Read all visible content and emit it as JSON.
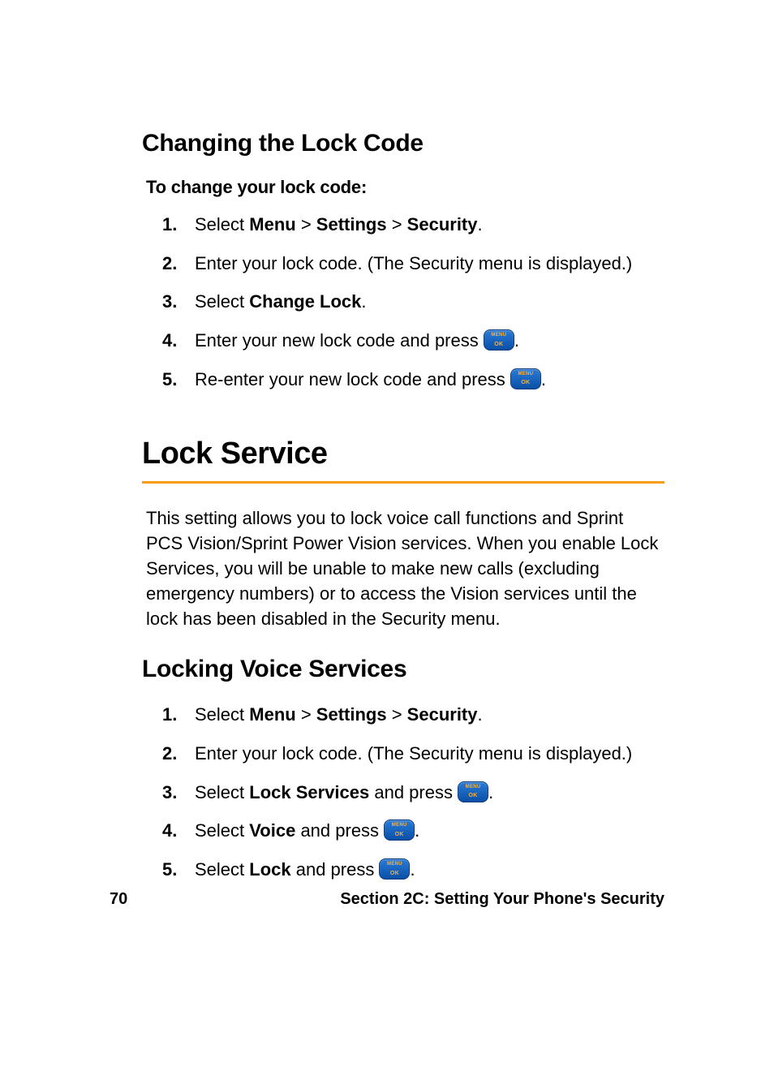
{
  "colors": {
    "text": "#000000",
    "background": "#ffffff",
    "accent_rule": "#f59c1a",
    "button_gradient_top": "#2a7bd6",
    "button_gradient_bottom": "#0a4fa8",
    "button_border": "#0a3a7a",
    "button_text": "#ffb030"
  },
  "typography": {
    "h1_fontsize": 38,
    "h2_fontsize": 30,
    "intro_fontsize": 22,
    "body_fontsize": 22,
    "footer_fontsize": 20,
    "font_family": "Myriad Pro, Segoe UI, Helvetica Neue, Arial, sans-serif"
  },
  "button_icon": {
    "label_top": "MENU",
    "label_bottom": "OK"
  },
  "section_changing": {
    "heading": "Changing the Lock Code",
    "intro": "To change your lock code:",
    "steps": [
      {
        "num": "1.",
        "pre": "Select ",
        "menu": "Menu",
        "gt1": " > ",
        "settings": "Settings",
        "gt2": " > ",
        "security": "Security",
        "post": "."
      },
      {
        "num": "2.",
        "text": "Enter your lock code. (The Security menu is displayed.)"
      },
      {
        "num": "3.",
        "pre": "Select ",
        "bold": "Change Lock",
        "post": "."
      },
      {
        "num": "4.",
        "pre": "Enter your new lock code and press ",
        "post": "."
      },
      {
        "num": "5.",
        "pre": "Re-enter your new lock code and press ",
        "post": "."
      }
    ]
  },
  "section_lockservice": {
    "heading": "Lock Service",
    "para": "This setting allows you to lock voice call functions and Sprint PCS Vision/Sprint Power Vision services. When you enable Lock Services, you will be unable to make new calls (excluding emergency numbers) or to access the Vision services until the lock has been disabled in the Security menu."
  },
  "section_lockvoice": {
    "heading": "Locking Voice Services",
    "steps": [
      {
        "num": "1.",
        "pre": "Select ",
        "menu": "Menu",
        "gt1": " > ",
        "settings": "Settings",
        "gt2": " > ",
        "security": "Security",
        "post": "."
      },
      {
        "num": "2.",
        "text": "Enter your lock code. (The Security menu is displayed.)"
      },
      {
        "num": "3.",
        "pre": "Select ",
        "bold": "Lock Services",
        "mid": " and press ",
        "post": "."
      },
      {
        "num": "4.",
        "pre": "Select ",
        "bold": "Voice",
        "mid": " and press ",
        "post": "."
      },
      {
        "num": "5.",
        "pre": "Select ",
        "bold": "Lock",
        "mid": " and press ",
        "post": "."
      }
    ]
  },
  "footer": {
    "page_number": "70",
    "section_label": "Section 2C: Setting Your Phone's Security"
  }
}
